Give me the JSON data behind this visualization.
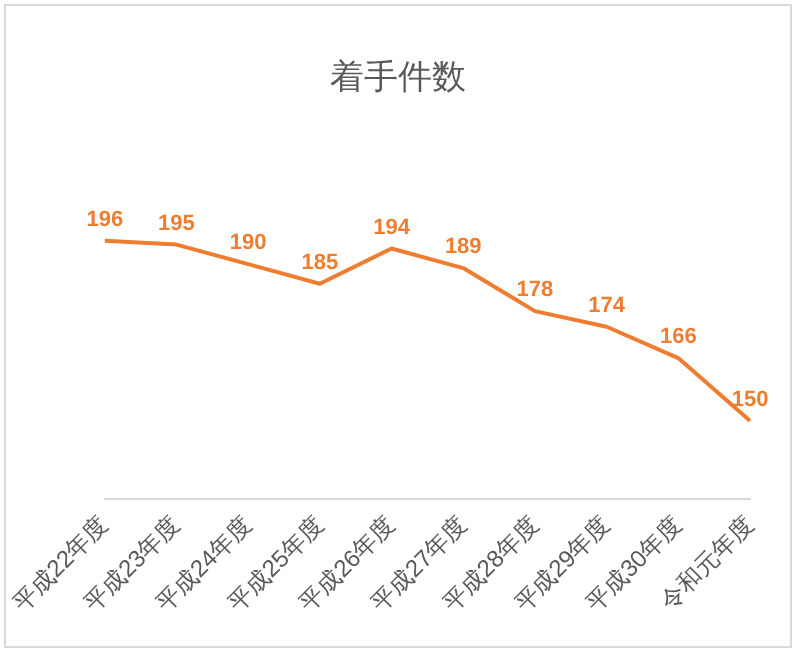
{
  "chart_data": {
    "type": "line",
    "title": "着手件数",
    "categories": [
      "平成22年度",
      "平成23年度",
      "平成24年度",
      "平成25年度",
      "平成26年度",
      "平成27年度",
      "平成28年度",
      "平成29年度",
      "平成30年度",
      "令和元年度"
    ],
    "series": [
      {
        "color": "#ed7d31",
        "values": [
          196,
          195,
          190,
          185,
          194,
          189,
          178,
          174,
          166,
          150
        ]
      }
    ],
    "tick_labels": "x",
    "grid": false,
    "legend": false,
    "line_style": "solid",
    "data_labels": true
  }
}
